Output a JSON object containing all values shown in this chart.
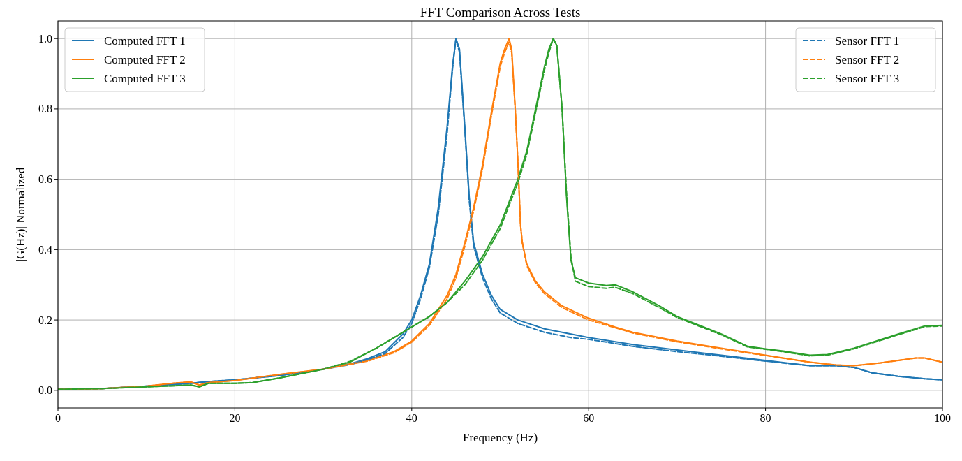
{
  "chart_data": {
    "type": "line",
    "title": "FFT Comparison Across Tests",
    "xlabel": "Frequency (Hz)",
    "ylabel": "|G(Hz)| Normalized",
    "xlim": [
      0,
      100
    ],
    "xticks": [
      0,
      20,
      40,
      60,
      80,
      100
    ],
    "ylim": [
      -0.05,
      1.05
    ],
    "yticks": [
      {
        "value": 0,
        "label": "0.0"
      },
      {
        "value": 0.2,
        "label": "0.2"
      },
      {
        "value": 0.4,
        "label": "0.4"
      },
      {
        "value": 0.6,
        "label": "0.6"
      },
      {
        "value": 0.8,
        "label": "0.8"
      },
      {
        "value": 1,
        "label": "1.0"
      }
    ],
    "grid": true,
    "legend": "top left",
    "series": [
      {
        "name": "Computed FFT 1",
        "color": "#1f77b4",
        "line_style": "solid",
        "x": [
          0,
          5,
          10,
          15,
          17,
          20,
          25,
          30,
          33,
          35,
          37,
          39,
          40,
          41,
          42,
          43,
          44,
          44.6,
          45,
          45.4,
          46,
          46.5,
          47,
          48,
          49,
          50,
          52,
          55,
          58,
          60,
          65,
          70,
          75,
          80,
          85,
          88,
          90,
          92,
          95,
          98,
          100
        ],
        "values": [
          0.005,
          0.005,
          0.012,
          0.02,
          0.025,
          0.03,
          0.042,
          0.06,
          0.075,
          0.09,
          0.11,
          0.16,
          0.2,
          0.27,
          0.36,
          0.52,
          0.75,
          0.92,
          1.0,
          0.97,
          0.75,
          0.55,
          0.42,
          0.33,
          0.27,
          0.23,
          0.2,
          0.175,
          0.16,
          0.15,
          0.13,
          0.115,
          0.1,
          0.085,
          0.07,
          0.07,
          0.065,
          0.05,
          0.04,
          0.033,
          0.03
        ]
      },
      {
        "name": "Computed FFT 2",
        "color": "#ff7f0e",
        "line_style": "solid",
        "x": [
          0,
          5,
          10,
          13,
          15,
          16,
          17,
          20,
          25,
          30,
          35,
          38,
          40,
          42,
          44,
          45,
          46,
          47,
          48,
          49,
          50,
          50.5,
          51,
          51.3,
          51.7,
          52,
          52.3,
          52.5,
          53,
          54,
          55,
          57,
          60,
          63,
          65,
          70,
          75,
          80,
          85,
          88,
          90,
          93,
          95,
          97,
          98,
          100
        ],
        "values": [
          0.003,
          0.005,
          0.012,
          0.02,
          0.024,
          0.015,
          0.022,
          0.028,
          0.045,
          0.06,
          0.085,
          0.11,
          0.14,
          0.19,
          0.27,
          0.33,
          0.42,
          0.52,
          0.64,
          0.79,
          0.93,
          0.97,
          1.0,
          0.97,
          0.8,
          0.65,
          0.47,
          0.42,
          0.36,
          0.31,
          0.28,
          0.24,
          0.205,
          0.18,
          0.165,
          0.14,
          0.12,
          0.1,
          0.08,
          0.072,
          0.07,
          0.078,
          0.085,
          0.092,
          0.092,
          0.08
        ]
      },
      {
        "name": "Computed FFT 3",
        "color": "#2ca02c",
        "line_style": "solid",
        "x": [
          0,
          5,
          10,
          15,
          16,
          17,
          20,
          22,
          25,
          30,
          33,
          36,
          38,
          40,
          42,
          44,
          46,
          48,
          50,
          52,
          53,
          54,
          55,
          55.5,
          56,
          56.4,
          57,
          57.5,
          58,
          58.5,
          60,
          62,
          63,
          65,
          68,
          70,
          75,
          78,
          80,
          82,
          85,
          87,
          90,
          95,
          98,
          100
        ],
        "values": [
          0.003,
          0.005,
          0.01,
          0.015,
          0.01,
          0.02,
          0.02,
          0.022,
          0.035,
          0.06,
          0.08,
          0.12,
          0.15,
          0.18,
          0.21,
          0.25,
          0.31,
          0.38,
          0.47,
          0.6,
          0.68,
          0.8,
          0.92,
          0.97,
          1.0,
          0.98,
          0.8,
          0.55,
          0.37,
          0.32,
          0.305,
          0.298,
          0.3,
          0.28,
          0.24,
          0.21,
          0.16,
          0.125,
          0.118,
          0.112,
          0.1,
          0.102,
          0.12,
          0.16,
          0.183,
          0.185
        ]
      },
      {
        "name": "Sensor FFT 1",
        "color": "#1f77b4",
        "line_style": "dashed",
        "x": [
          0,
          5,
          10,
          15,
          17,
          20,
          25,
          30,
          33,
          35,
          37,
          39,
          40,
          41,
          42,
          43,
          44,
          44.6,
          45,
          45.4,
          46,
          46.5,
          47,
          48,
          49,
          50,
          52,
          55,
          58,
          60,
          65,
          70,
          75,
          80,
          85,
          88,
          90,
          92,
          95,
          98,
          100
        ],
        "values": [
          0.005,
          0.005,
          0.012,
          0.02,
          0.025,
          0.03,
          0.042,
          0.06,
          0.073,
          0.087,
          0.105,
          0.15,
          0.19,
          0.26,
          0.35,
          0.5,
          0.73,
          0.91,
          1.0,
          0.96,
          0.74,
          0.54,
          0.41,
          0.32,
          0.26,
          0.22,
          0.19,
          0.165,
          0.15,
          0.145,
          0.125,
          0.11,
          0.097,
          0.083,
          0.07,
          0.07,
          0.065,
          0.05,
          0.04,
          0.033,
          0.03
        ]
      },
      {
        "name": "Sensor FFT 2",
        "color": "#ff7f0e",
        "line_style": "dashed",
        "x": [
          0,
          5,
          10,
          13,
          15,
          16,
          17,
          20,
          25,
          30,
          35,
          38,
          40,
          42,
          44,
          45,
          46,
          47,
          48,
          49,
          50,
          50.5,
          51,
          51.3,
          51.7,
          52,
          52.3,
          52.5,
          53,
          54,
          55,
          57,
          60,
          63,
          65,
          70,
          75,
          80,
          85,
          88,
          90,
          93,
          95,
          97,
          98,
          100
        ],
        "values": [
          0.003,
          0.005,
          0.012,
          0.02,
          0.024,
          0.015,
          0.022,
          0.028,
          0.045,
          0.06,
          0.083,
          0.107,
          0.137,
          0.185,
          0.26,
          0.32,
          0.41,
          0.51,
          0.63,
          0.78,
          0.92,
          0.96,
          0.99,
          0.96,
          0.8,
          0.65,
          0.47,
          0.42,
          0.355,
          0.305,
          0.275,
          0.235,
          0.2,
          0.178,
          0.163,
          0.138,
          0.118,
          0.099,
          0.08,
          0.072,
          0.07,
          0.078,
          0.085,
          0.092,
          0.092,
          0.08
        ]
      },
      {
        "name": "Sensor FFT 3",
        "color": "#2ca02c",
        "line_style": "dashed",
        "x": [
          0,
          5,
          10,
          15,
          16,
          17,
          20,
          22,
          25,
          30,
          33,
          36,
          38,
          40,
          42,
          44,
          46,
          48,
          50,
          52,
          53,
          54,
          55,
          55.5,
          56,
          56.4,
          57,
          57.5,
          58,
          58.5,
          60,
          62,
          63,
          65,
          68,
          70,
          75,
          78,
          80,
          82,
          85,
          87,
          90,
          95,
          98,
          100
        ],
        "values": [
          0.003,
          0.005,
          0.01,
          0.015,
          0.01,
          0.02,
          0.02,
          0.022,
          0.035,
          0.06,
          0.082,
          0.12,
          0.15,
          0.18,
          0.21,
          0.25,
          0.3,
          0.37,
          0.46,
          0.59,
          0.67,
          0.79,
          0.91,
          0.96,
          1.0,
          0.98,
          0.8,
          0.56,
          0.38,
          0.31,
          0.295,
          0.29,
          0.293,
          0.275,
          0.235,
          0.207,
          0.158,
          0.123,
          0.117,
          0.11,
          0.098,
          0.1,
          0.118,
          0.158,
          0.181,
          0.183
        ]
      }
    ]
  }
}
